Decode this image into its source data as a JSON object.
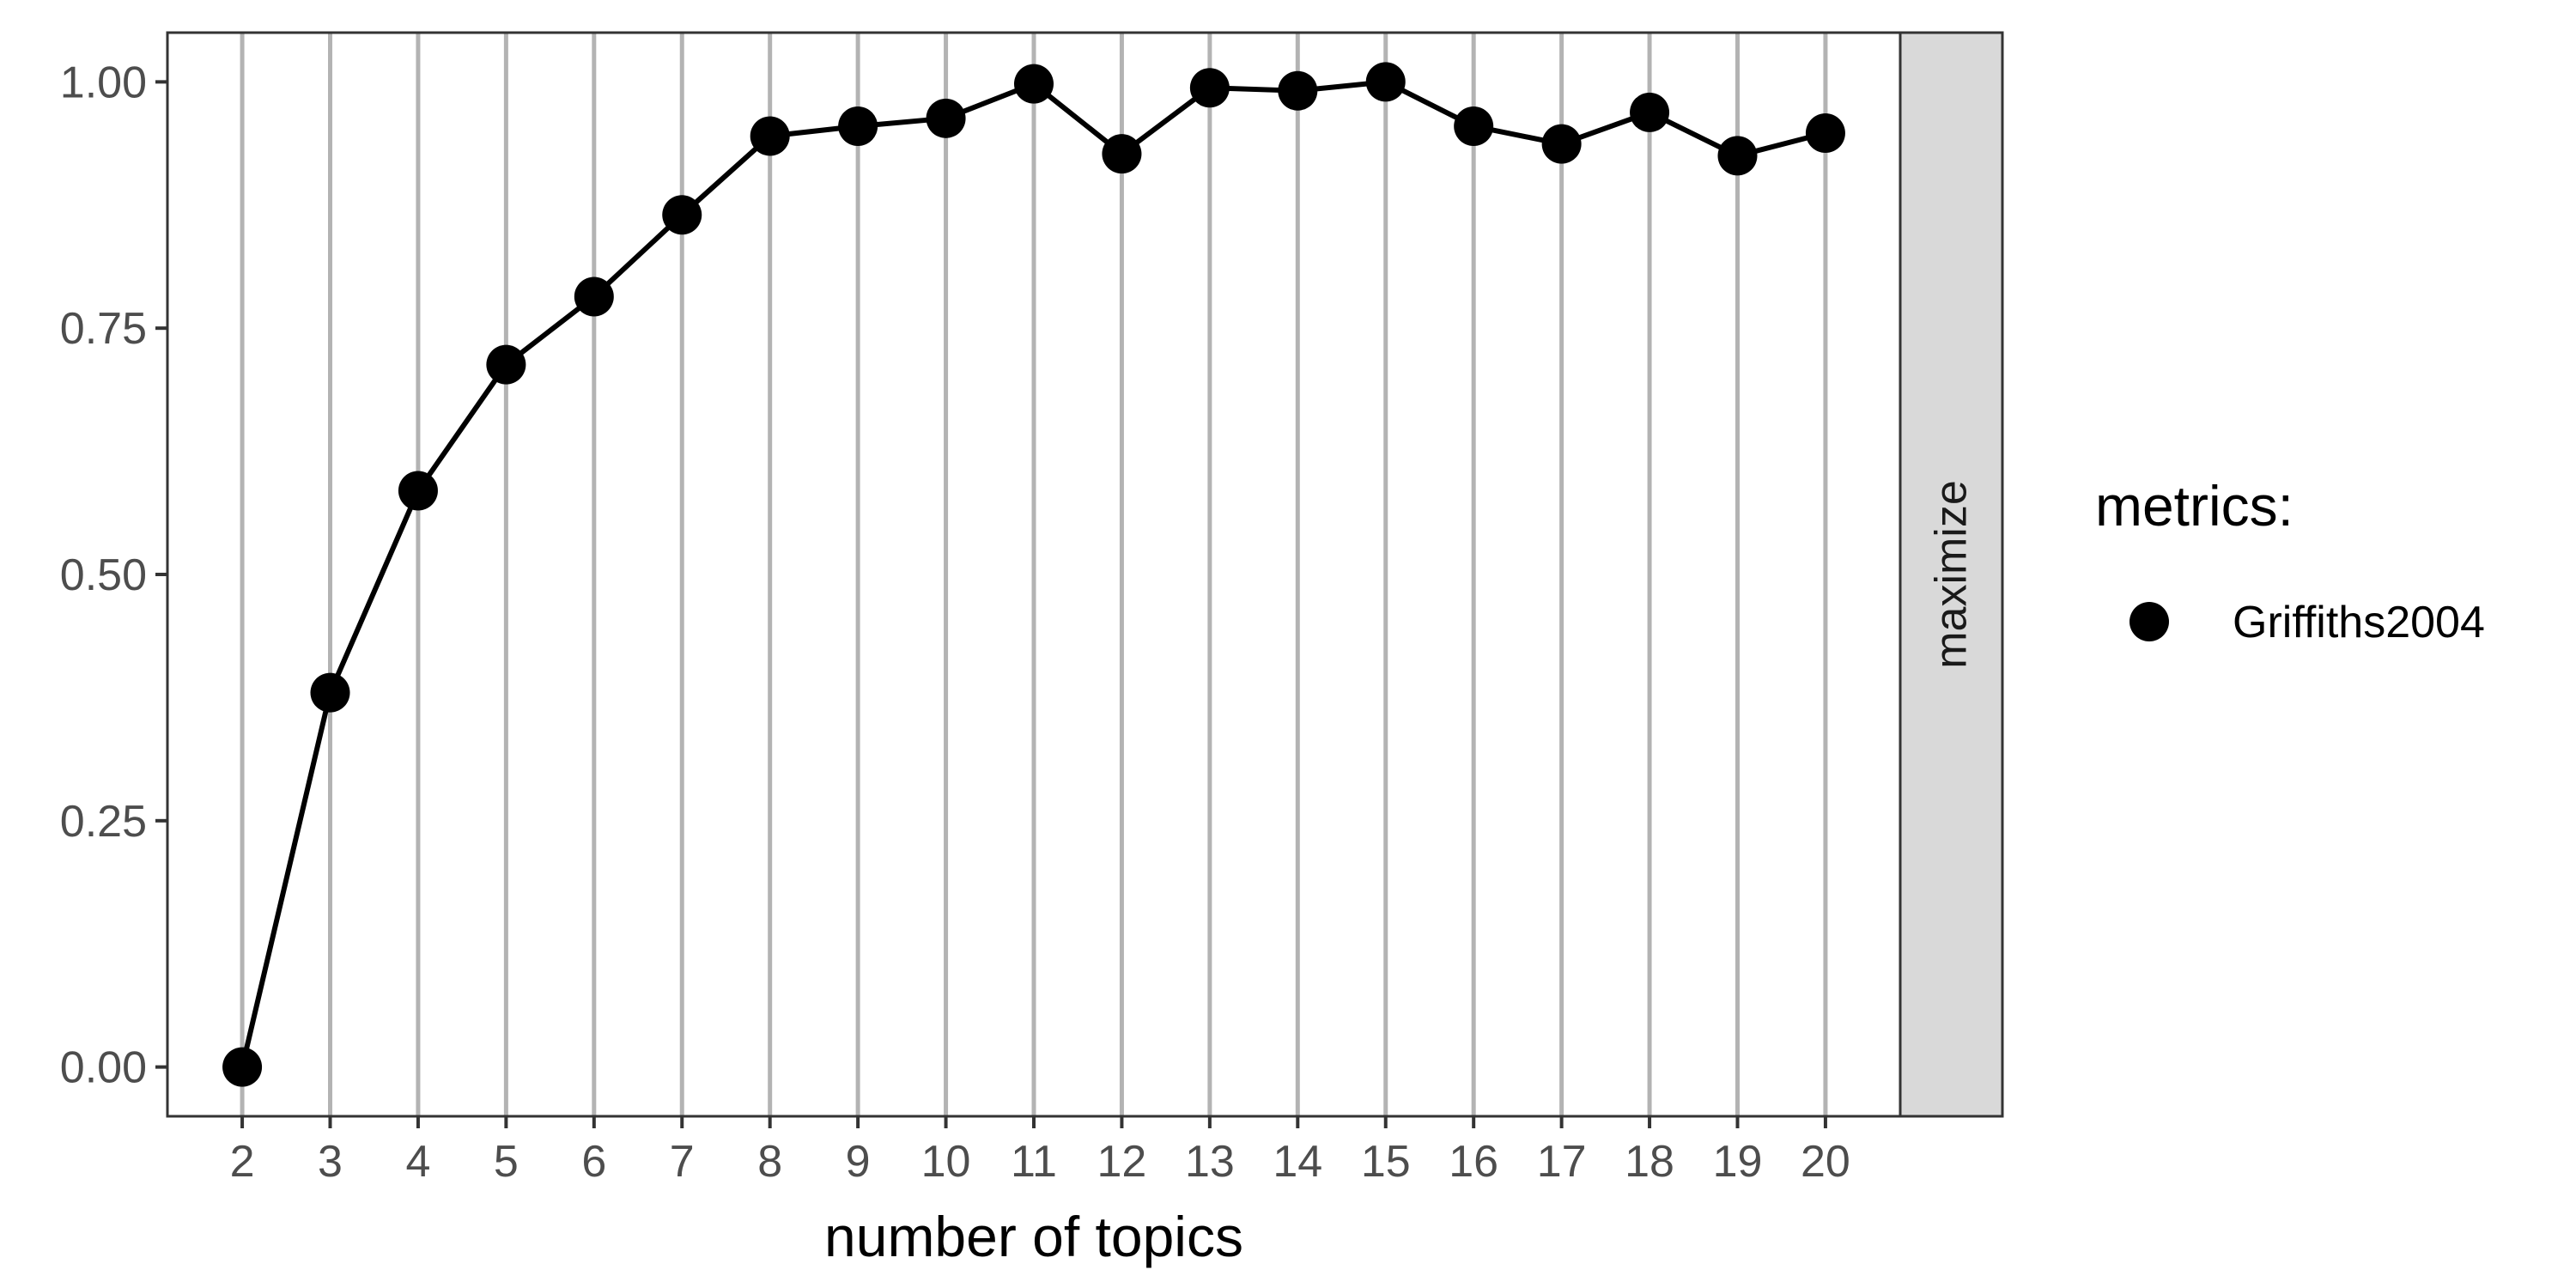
{
  "chart_data": {
    "type": "line",
    "xlabel": "number of topics",
    "ylabel": "",
    "x": [
      2,
      3,
      4,
      5,
      6,
      7,
      8,
      9,
      10,
      11,
      12,
      13,
      14,
      15,
      16,
      17,
      18,
      19,
      20
    ],
    "x_tick_labels": [
      "2",
      "3",
      "4",
      "5",
      "6",
      "7",
      "8",
      "9",
      "10",
      "11",
      "12",
      "13",
      "14",
      "15",
      "16",
      "17",
      "18",
      "19",
      "20"
    ],
    "y_ticks": [
      0,
      0.25,
      0.5,
      0.75,
      1.0
    ],
    "y_tick_labels": [
      "0.00",
      "0.25",
      "0.50",
      "0.75",
      "1.00"
    ],
    "xlim": [
      1.15,
      20.85
    ],
    "ylim": [
      -0.05,
      1.05
    ],
    "grid": "vertical-major",
    "facet_strip_label": "maximize",
    "legend": {
      "title": "metrics:",
      "placement": "right",
      "entries": [
        "Griffiths2004"
      ]
    },
    "series": [
      {
        "name": "Griffiths2004",
        "color": "#000000",
        "marker": "circle",
        "values": [
          0.0,
          0.38,
          0.585,
          0.713,
          0.782,
          0.865,
          0.945,
          0.955,
          0.963,
          0.998,
          0.927,
          0.994,
          0.991,
          1.0,
          0.955,
          0.937,
          0.969,
          0.925,
          0.948
        ]
      }
    ]
  },
  "colors": {
    "grid": "#b3b3b3",
    "panel_border": "#333333",
    "strip_fill": "#d9d9d9",
    "tick_text": "#4d4d4d"
  }
}
